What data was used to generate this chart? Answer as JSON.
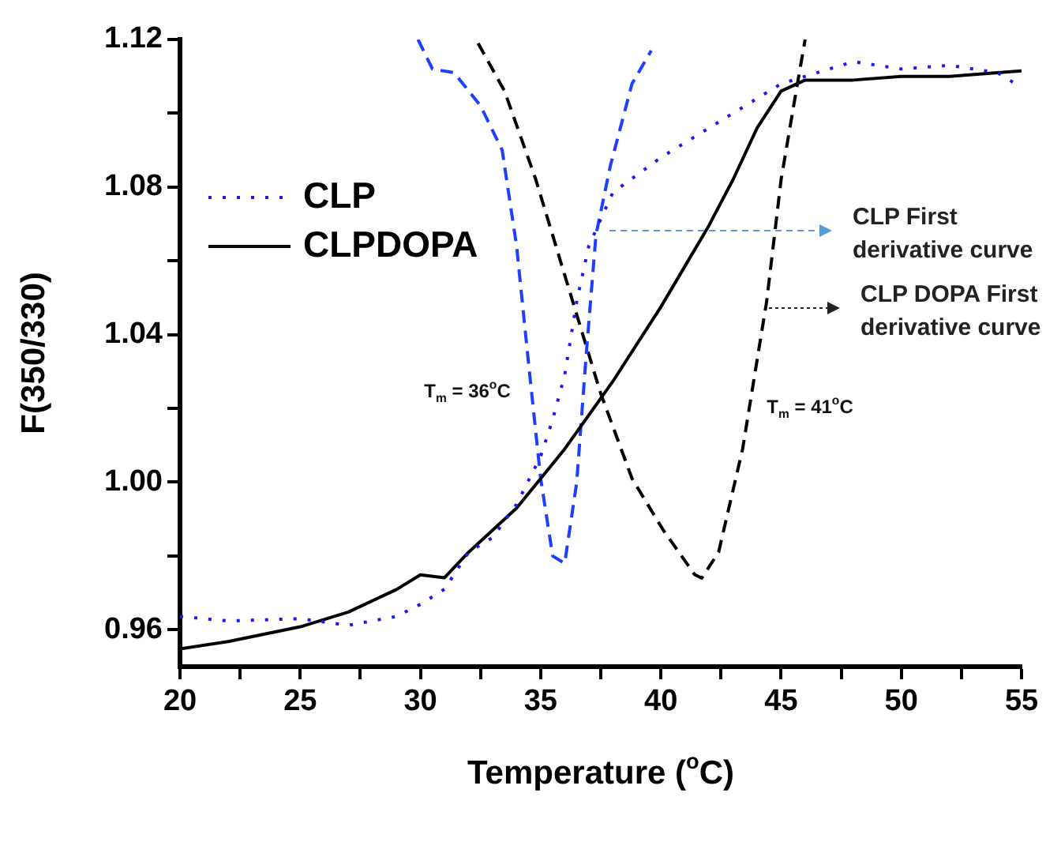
{
  "chart_data": {
    "type": "line",
    "xlabel": "Temperature ($^{o}$C)",
    "ylabel": "F(350/330)",
    "xlim": [
      20,
      55
    ],
    "xticks": [
      20,
      {
        "value": 22.5,
        "label": null
      },
      25,
      {
        "value": 27.5,
        "label": null
      },
      30,
      {
        "value": 32.5,
        "label": null
      },
      35,
      {
        "value": 37.5,
        "label": null
      },
      40,
      {
        "value": 42.5,
        "label": null
      },
      45,
      {
        "value": 47.5,
        "label": null
      },
      50,
      {
        "value": 52.5,
        "label": null
      },
      55
    ],
    "ylim": [
      0.95,
      1.12
    ],
    "yticks": [
      0.96,
      {
        "value": 0.98,
        "label": null
      },
      {
        "value": 1,
        "label": "1.00"
      },
      {
        "value": 1.02,
        "label": null
      },
      1.04,
      {
        "value": 1.06,
        "label": null
      },
      1.08,
      {
        "value": 1.1,
        "label": null
      },
      1.12
    ],
    "legend": "top left",
    "grid": false,
    "series": [
      {
        "name": "CLP",
        "color": "#1a1aee",
        "line_style": "dotted",
        "x": [
          20,
          22,
          25,
          27,
          29,
          30,
          31,
          32,
          33,
          34,
          35,
          35.5,
          36,
          36.5,
          37,
          38,
          40,
          42,
          44,
          45,
          46,
          48,
          50,
          52,
          54,
          55
        ],
        "values": [
          0.9636,
          0.9624,
          0.963,
          0.9612,
          0.9636,
          0.9669,
          0.971,
          0.981,
          0.985,
          0.994,
          1.007,
          1.017,
          1.029,
          1.049,
          1.064,
          1.0785,
          1.088,
          1.096,
          1.104,
          1.108,
          1.11,
          1.114,
          1.112,
          1.113,
          1.111,
          1.107
        ]
      },
      {
        "name": "CLPDOPA",
        "color": "#000000",
        "line_style": "solid",
        "x": [
          20,
          22,
          25,
          27,
          29,
          30,
          31,
          32,
          34,
          36,
          38,
          40,
          42,
          43,
          44,
          45,
          46,
          48,
          50,
          52,
          54,
          55
        ],
        "values": [
          0.9548,
          0.9568,
          0.9608,
          0.9648,
          0.9709,
          0.9749,
          0.9741,
          0.981,
          0.993,
          1.009,
          1.0273,
          1.0475,
          1.0696,
          1.082,
          1.096,
          1.106,
          1.109,
          1.109,
          1.11,
          1.11,
          1.111,
          1.1115
        ]
      },
      {
        "color": "#1f3fff",
        "line_style": "dashed",
        "x": [
          29.9,
          30.5,
          31.4,
          32.5,
          33.4,
          34,
          34.5,
          35,
          35.5,
          36,
          36.5,
          36.9,
          37.3,
          37.9,
          38.8,
          39.6
        ],
        "values": [
          1.12,
          1.112,
          1.111,
          1.102,
          1.09,
          1.064,
          1.032,
          1.001,
          0.98,
          0.978,
          1.0,
          1.035,
          1.067,
          1.0858,
          1.108,
          1.117
        ]
      },
      {
        "color": "#000000",
        "line_style": "dashed",
        "x": [
          32.4,
          33.5,
          34.8,
          36.1,
          37.5,
          38.8,
          40.1,
          41.4,
          41.7,
          42.4,
          43.4,
          44.4,
          45,
          45.6,
          46
        ],
        "values": [
          1.119,
          1.106,
          1.082,
          1.054,
          1.024,
          1.001,
          0.987,
          0.975,
          0.974,
          0.981,
          1.009,
          1.049,
          1.082,
          1.105,
          1.12
        ]
      }
    ],
    "annotations": [
      "CLP First derivative curve",
      "CLP DOPA First derivative curve",
      "T$_{m}$ = 36$^{o}$C",
      "T$_{m}$ = 41$^{o}$C"
    ]
  }
}
